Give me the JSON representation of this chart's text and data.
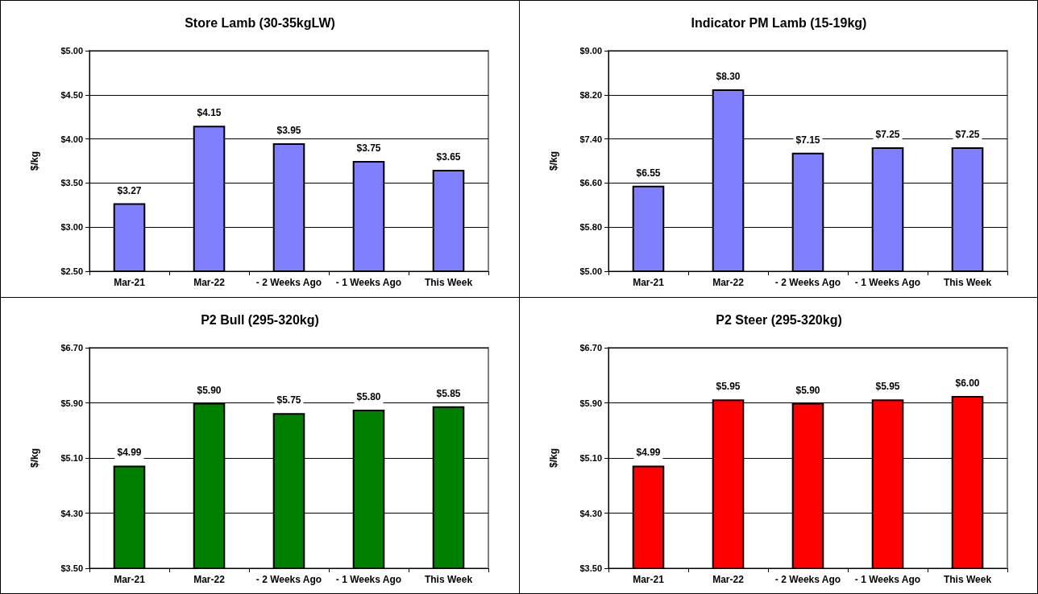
{
  "chart_data": [
    {
      "type": "bar",
      "title": "Store Lamb (30-35kgLW)",
      "ylabel": "$/kg",
      "categories": [
        "Mar-21",
        "Mar-22",
        "- 2 Weeks Ago",
        "- 1 Weeks Ago",
        "This Week"
      ],
      "values": [
        3.27,
        4.15,
        3.95,
        3.75,
        3.65
      ],
      "value_labels": [
        "$3.27",
        "$4.15",
        "$3.95",
        "$3.75",
        "$3.65"
      ],
      "color": "#8080ff",
      "ylim": [
        2.5,
        5
      ],
      "yticks": [
        {
          "value": 2.5,
          "label": "$2.50"
        },
        {
          "value": 3,
          "label": "$3.00"
        },
        {
          "value": 3.5,
          "label": "$3.50"
        },
        {
          "value": 4,
          "label": "$4.00"
        },
        {
          "value": 4.5,
          "label": "$4.50"
        },
        {
          "value": 5,
          "label": "$5.00"
        }
      ],
      "grid": "y"
    },
    {
      "type": "bar",
      "title": "Indicator PM Lamb (15-19kg)",
      "ylabel": "$/kg",
      "categories": [
        "Mar-21",
        "Mar-22",
        "- 2 Weeks Ago",
        "- 1 Weeks Ago",
        "This Week"
      ],
      "values": [
        6.55,
        8.3,
        7.15,
        7.25,
        7.25
      ],
      "value_labels": [
        "$6.55",
        "$8.30",
        "$7.15",
        "$7.25",
        "$7.25"
      ],
      "color": "#8080ff",
      "ylim": [
        5,
        9
      ],
      "yticks": [
        {
          "value": 5,
          "label": "$5.00"
        },
        {
          "value": 5.8,
          "label": "$5.80"
        },
        {
          "value": 6.6,
          "label": "$6.60"
        },
        {
          "value": 7.4,
          "label": "$7.40"
        },
        {
          "value": 8.2,
          "label": "$8.20"
        },
        {
          "value": 9,
          "label": "$9.00"
        }
      ],
      "grid": "y"
    },
    {
      "type": "bar",
      "title": "P2 Bull (295-320kg)",
      "ylabel": "$/kg",
      "categories": [
        "Mar-21",
        "Mar-22",
        "- 2 Weeks Ago",
        "- 1 Weeks Ago",
        "This Week"
      ],
      "values": [
        4.99,
        5.9,
        5.75,
        5.8,
        5.85
      ],
      "value_labels": [
        "$4.99",
        "$5.90",
        "$5.75",
        "$5.80",
        "$5.85"
      ],
      "color": "#008000",
      "ylim": [
        3.5,
        6.7
      ],
      "yticks": [
        {
          "value": 3.5,
          "label": "$3.50"
        },
        {
          "value": 4.3,
          "label": "$4.30"
        },
        {
          "value": 5.1,
          "label": "$5.10"
        },
        {
          "value": 5.9,
          "label": "$5.90"
        },
        {
          "value": 6.7,
          "label": "$6.70"
        }
      ],
      "grid": "y"
    },
    {
      "type": "bar",
      "title": "P2 Steer (295-320kg)",
      "ylabel": "$/kg",
      "categories": [
        "Mar-21",
        "Mar-22",
        "- 2 Weeks Ago",
        "- 1 Weeks Ago",
        "This Week"
      ],
      "values": [
        4.99,
        5.95,
        5.9,
        5.95,
        6.0
      ],
      "value_labels": [
        "$4.99",
        "$5.95",
        "$5.90",
        "$5.95",
        "$6.00"
      ],
      "color": "#ff0000",
      "ylim": [
        3.5,
        6.7
      ],
      "yticks": [
        {
          "value": 3.5,
          "label": "$3.50"
        },
        {
          "value": 4.3,
          "label": "$4.30"
        },
        {
          "value": 5.1,
          "label": "$5.10"
        },
        {
          "value": 5.9,
          "label": "$5.90"
        },
        {
          "value": 6.7,
          "label": "$6.70"
        }
      ],
      "grid": "y"
    }
  ]
}
